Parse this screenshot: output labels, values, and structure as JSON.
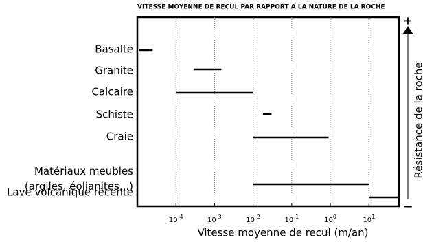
{
  "chart_data": {
    "type": "range",
    "title": "VITESSE MOYENNE DE RECUL PAR RAPPORT À LA NATURE DE LA ROCHE",
    "x_label": "Vitesse moyenne de recul (m/an)",
    "y2_label": "Résistance de la roche",
    "y2_top_label": "+",
    "y2_bottom_label": "−",
    "categories": [
      "Basalte",
      "Granite",
      "Calcaire",
      "Schiste",
      "Craie",
      "Matériaux meubles\n(argiles, éolianites...)",
      "Lave volcanique récente"
    ],
    "low": [
      1.1e-05,
      0.0003,
      0.0001,
      0.018,
      0.01,
      0.01,
      10
    ],
    "high": [
      2.5e-05,
      0.0015,
      0.01,
      0.03,
      0.9,
      10,
      60
    ],
    "color": "#000000",
    "xscale": "log",
    "xlim": [
      1e-05,
      60
    ],
    "xticks": [
      {
        "value": 0.0001,
        "label": "10-4"
      },
      {
        "value": 0.001,
        "label": "10-3"
      },
      {
        "value": 0.01,
        "label": "10-2"
      },
      {
        "value": 0.1,
        "label": "10-1"
      },
      {
        "value": 1,
        "label": "100"
      },
      {
        "value": 10,
        "label": "101"
      }
    ],
    "grid": true
  }
}
